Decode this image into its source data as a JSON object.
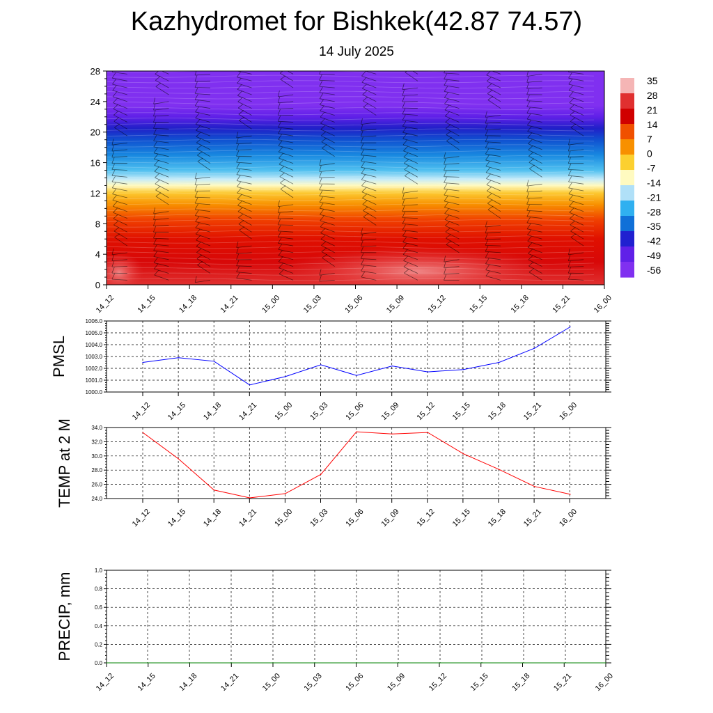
{
  "title": "Kazhydromet for Bishkek(42.87 74.57)",
  "subtitle": "14 July 2025",
  "time_labels": [
    "14_12",
    "14_15",
    "14_18",
    "14_21",
    "15_00",
    "15_03",
    "15_06",
    "15_09",
    "15_12",
    "15_15",
    "15_18",
    "15_21",
    "16_00"
  ],
  "chart_data": [
    {
      "type": "heatmap",
      "ylim": [
        0,
        28
      ],
      "y_ticks": [
        0,
        4,
        8,
        12,
        16,
        20,
        24,
        28
      ],
      "colorbar": {
        "labels": [
          "35",
          "28",
          "21",
          "14",
          "7",
          "0",
          "-7",
          "-14",
          "-21",
          "-28",
          "-35",
          "-42",
          "-49",
          "-56"
        ],
        "colors": [
          "#f5b5b5",
          "#e03030",
          "#d00000",
          "#f05000",
          "#f89000",
          "#fcd030",
          "#fffac0",
          "#b0e0f8",
          "#30b0f0",
          "#1070d8",
          "#2020d0",
          "#6020e8",
          "#8030f0"
        ]
      },
      "profile": [
        {
          "h": 0,
          "c": "#e03030"
        },
        {
          "h": 3,
          "c": "#d80808"
        },
        {
          "h": 6,
          "c": "#e01000"
        },
        {
          "h": 8.5,
          "c": "#f04000"
        },
        {
          "h": 10.5,
          "c": "#f89000"
        },
        {
          "h": 12,
          "c": "#fcc830"
        },
        {
          "h": 13,
          "c": "#fffac0"
        },
        {
          "h": 13.8,
          "c": "#c8ecf8"
        },
        {
          "h": 15,
          "c": "#50c0f0"
        },
        {
          "h": 17,
          "c": "#1888e0"
        },
        {
          "h": 19,
          "c": "#1050d0"
        },
        {
          "h": 20.5,
          "c": "#2020c8"
        },
        {
          "h": 22,
          "c": "#6020e8"
        },
        {
          "h": 23.5,
          "c": "#8030f0"
        },
        {
          "h": 28,
          "c": "#8030f0"
        }
      ],
      "warm_spots": [
        {
          "t": 0.3,
          "h": 1.6,
          "rx": 0.6,
          "rh": 2.6
        },
        {
          "t": 7.5,
          "h": 1.8,
          "rx": 3.3,
          "rh": 3.2
        }
      ]
    },
    {
      "type": "line",
      "ylabel": "PMSL",
      "ylim": [
        1000,
        1006
      ],
      "y_ticks": [
        "1000.0",
        "1001.0",
        "1002.0",
        "1003.0",
        "1004.0",
        "1005.0",
        "1006.0"
      ],
      "color": "#0000ff",
      "values": [
        1002.5,
        1002.9,
        1002.6,
        1000.6,
        1001.3,
        1002.3,
        1001.4,
        1002.2,
        1001.7,
        1001.9,
        1002.5,
        1003.7,
        1005.5
      ]
    },
    {
      "type": "line",
      "ylabel": "TEMP at 2 M",
      "ylim": [
        24,
        34
      ],
      "y_ticks": [
        "24.0",
        "26.0",
        "28.0",
        "30.0",
        "32.0",
        "34.0"
      ],
      "color": "#ff0000",
      "values": [
        33.3,
        29.6,
        25.2,
        24.1,
        24.7,
        27.4,
        33.4,
        33.1,
        33.3,
        30.3,
        28.1,
        25.7,
        24.6
      ]
    },
    {
      "type": "line",
      "ylabel": "PRECIP, mm",
      "ylim": [
        0,
        1
      ],
      "y_ticks": [
        "0.0",
        "0.2",
        "0.4",
        "0.6",
        "0.8",
        "1.0"
      ],
      "color": "#008000",
      "values": [
        0,
        0,
        0,
        0,
        0,
        0,
        0,
        0,
        0,
        0,
        0,
        0,
        0
      ]
    }
  ]
}
